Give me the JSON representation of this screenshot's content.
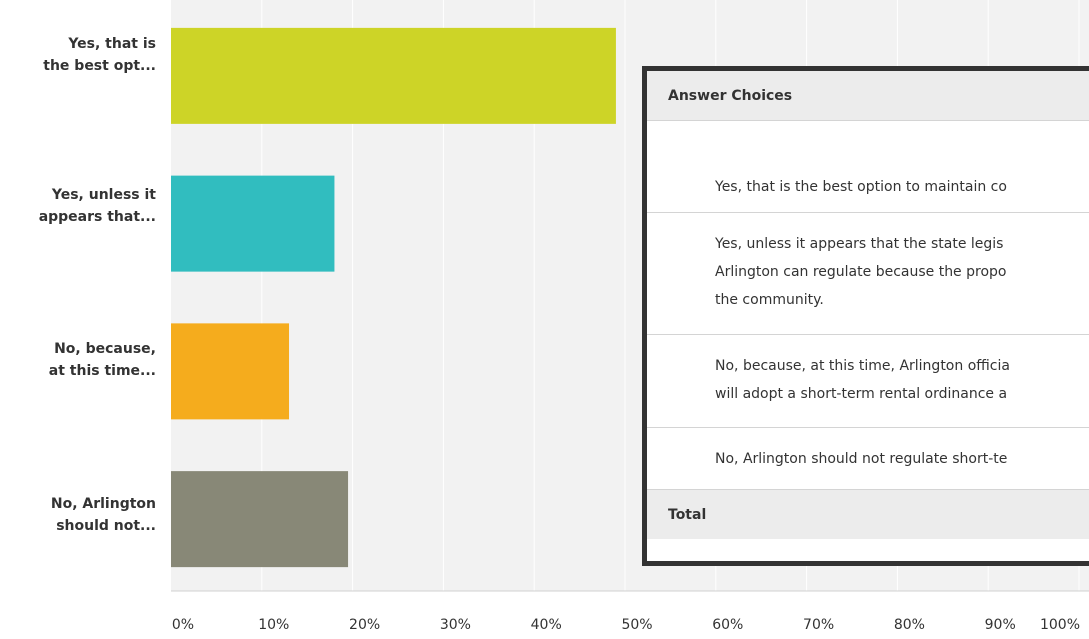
{
  "chart_data": {
    "type": "bar",
    "orientation": "horizontal",
    "categories": [
      "Yes, that is the best opt...",
      "Yes, unless it appears that...",
      "No, because, at this time...",
      "No, Arlington should not..."
    ],
    "category_lines": [
      [
        "Yes, that is",
        "the best opt..."
      ],
      [
        "Yes, unless it",
        "appears that..."
      ],
      [
        "No, because,",
        "at this time..."
      ],
      [
        "No, Arlington",
        "should not..."
      ]
    ],
    "values": [
      49,
      18,
      13,
      19.5
    ],
    "colors": [
      "#cdd427",
      "#31bdbf",
      "#f5ac1d",
      "#888877"
    ],
    "xlim": [
      0,
      100
    ],
    "x_ticks": [
      "0%",
      "10%",
      "20%",
      "30%",
      "40%",
      "50%",
      "60%",
      "70%",
      "80%",
      "90%",
      "100%"
    ],
    "grid": true
  },
  "table": {
    "header": "Answer Choices",
    "rows": [
      [
        "Yes, that is the best option to maintain co"
      ],
      [
        "Yes, unless it appears that the state legis",
        "Arlington can regulate because the propo",
        "the community."
      ],
      [
        "No, because, at this time, Arlington officia",
        "will adopt a short-term rental ordinance a"
      ],
      [
        "No, Arlington should not regulate short-te"
      ]
    ],
    "total_label": "Total"
  }
}
